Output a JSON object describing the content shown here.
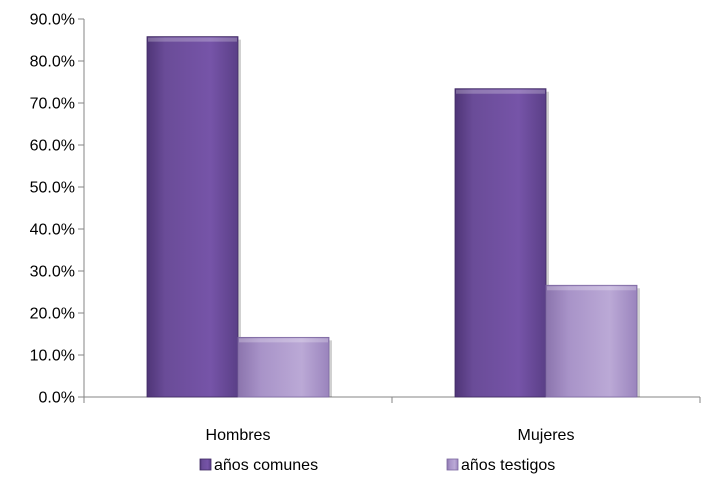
{
  "chart_data": {
    "type": "bar",
    "categories": [
      "Hombres",
      "Mujeres"
    ],
    "series": [
      {
        "name": "años comunes",
        "values": [
          85.8,
          73.4
        ],
        "color": "#6a4c98"
      },
      {
        "name": "años testigos",
        "values": [
          14.2,
          26.6
        ],
        "color": "#a893c8"
      }
    ],
    "yticks": [
      "0.0%",
      "10.0%",
      "20.0%",
      "30.0%",
      "40.0%",
      "50.0%",
      "60.0%",
      "70.0%",
      "80.0%",
      "90.0%"
    ],
    "ylim": [
      0,
      90
    ],
    "title": "",
    "xlabel": "",
    "ylabel": "",
    "grid": false,
    "legend_position": "bottom"
  }
}
